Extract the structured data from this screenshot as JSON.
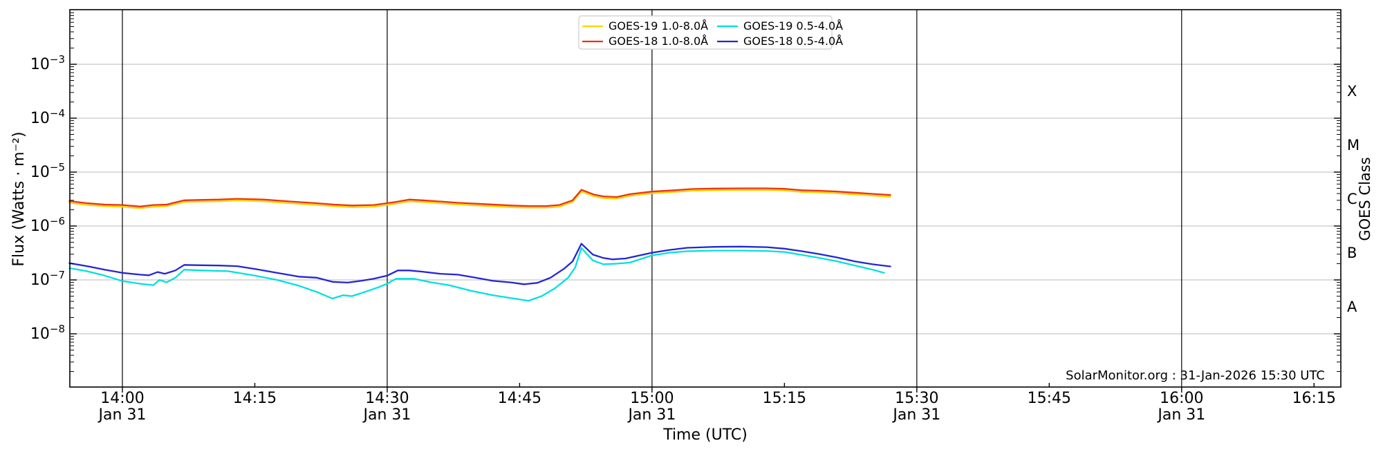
{
  "chart_data": {
    "type": "line",
    "title": "",
    "xlabel": "Time (UTC)",
    "ylabel": "Flux (Watts · m⁻²)",
    "ylabel_right": "GOES Class",
    "watermark": "SolarMonitor.org : 31-Jan-2026 15:30 UTC",
    "grid": true,
    "legend_position": "top-center",
    "x_unit": "minutes after 14:00 UTC, date Jan 31",
    "x_axis": {
      "window_start": "13:54",
      "window_end": "16:18",
      "ticks": [
        {
          "t_min": 0,
          "time": "14:00",
          "date": "Jan 31",
          "grid": true
        },
        {
          "t_min": 15,
          "time": "14:15",
          "date": "",
          "grid": false
        },
        {
          "t_min": 30,
          "time": "14:30",
          "date": "Jan 31",
          "grid": true
        },
        {
          "t_min": 45,
          "time": "14:45",
          "date": "",
          "grid": false
        },
        {
          "t_min": 60,
          "time": "15:00",
          "date": "Jan 31",
          "grid": true
        },
        {
          "t_min": 75,
          "time": "15:15",
          "date": "",
          "grid": false
        },
        {
          "t_min": 90,
          "time": "15:30",
          "date": "Jan 31",
          "grid": true
        },
        {
          "t_min": 105,
          "time": "15:45",
          "date": "",
          "grid": false
        },
        {
          "t_min": 120,
          "time": "16:00",
          "date": "Jan 31",
          "grid": true
        },
        {
          "t_min": 135,
          "time": "16:15",
          "date": "",
          "grid": false
        }
      ]
    },
    "y_axis": {
      "scale": "log",
      "min": 1e-09,
      "max": 0.01,
      "ticks": [
        {
          "exp": -3,
          "display": "10⁻³"
        },
        {
          "exp": -4,
          "display": "10⁻⁴"
        },
        {
          "exp": -5,
          "display": "10⁻⁵"
        },
        {
          "exp": -6,
          "display": "10⁻⁶"
        },
        {
          "exp": -7,
          "display": "10⁻⁷"
        },
        {
          "exp": -8,
          "display": "10⁻⁸"
        }
      ]
    },
    "goes_classes": [
      {
        "label": "X",
        "log10_center": -3.5
      },
      {
        "label": "M",
        "log10_center": -4.5
      },
      {
        "label": "C",
        "log10_center": -5.5
      },
      {
        "label": "B",
        "log10_center": -6.5
      },
      {
        "label": "A",
        "log10_center": -7.5
      }
    ],
    "colors": {
      "h_grid": "#c6c6c6",
      "v_grid": "#000000",
      "frame": "#000000",
      "legend_border": "#cccccc"
    },
    "series": [
      {
        "name": "GOES-19 1.0-8.0Å",
        "color": "#ffd200",
        "points": [
          [
            -6,
            2.7e-06
          ],
          [
            -4,
            2.46e-06
          ],
          [
            -2,
            2.33e-06
          ],
          [
            0,
            2.28e-06
          ],
          [
            2,
            2.14e-06
          ],
          [
            3.5,
            2.28e-06
          ],
          [
            5,
            2.33e-06
          ],
          [
            7,
            2.79e-06
          ],
          [
            9,
            2.84e-06
          ],
          [
            11,
            2.88e-06
          ],
          [
            13,
            2.98e-06
          ],
          [
            16,
            2.88e-06
          ],
          [
            19,
            2.65e-06
          ],
          [
            22,
            2.46e-06
          ],
          [
            24,
            2.33e-06
          ],
          [
            26,
            2.23e-06
          ],
          [
            28.5,
            2.28e-06
          ],
          [
            31,
            2.6e-06
          ],
          [
            32.5,
            2.88e-06
          ],
          [
            34,
            2.79e-06
          ],
          [
            36,
            2.65e-06
          ],
          [
            38,
            2.51e-06
          ],
          [
            41,
            2.37e-06
          ],
          [
            44,
            2.23e-06
          ],
          [
            46,
            2.19e-06
          ],
          [
            48,
            2.19e-06
          ],
          [
            49.5,
            2.28e-06
          ],
          [
            51,
            2.79e-06
          ],
          [
            52,
            4.37e-06
          ],
          [
            53.5,
            3.53e-06
          ],
          [
            54.5,
            3.3e-06
          ],
          [
            56,
            3.21e-06
          ],
          [
            57.5,
            3.63e-06
          ],
          [
            60,
            4.05e-06
          ],
          [
            62.5,
            4.28e-06
          ],
          [
            64.5,
            4.51e-06
          ],
          [
            67,
            4.6e-06
          ],
          [
            70,
            4.65e-06
          ],
          [
            73,
            4.65e-06
          ],
          [
            75,
            4.56e-06
          ],
          [
            77,
            4.28e-06
          ],
          [
            79,
            4.19e-06
          ],
          [
            81,
            4.05e-06
          ],
          [
            83,
            3.86e-06
          ],
          [
            85,
            3.67e-06
          ],
          [
            87,
            3.49e-06
          ]
        ]
      },
      {
        "name": "GOES-18 1.0-8.0Å",
        "color": "#ee3211",
        "points": [
          [
            -6,
            2.9e-06
          ],
          [
            -4,
            2.65e-06
          ],
          [
            -2,
            2.5e-06
          ],
          [
            0,
            2.45e-06
          ],
          [
            2,
            2.3e-06
          ],
          [
            3.5,
            2.45e-06
          ],
          [
            5,
            2.5e-06
          ],
          [
            7,
            3e-06
          ],
          [
            9,
            3.05e-06
          ],
          [
            11,
            3.1e-06
          ],
          [
            13,
            3.2e-06
          ],
          [
            16,
            3.1e-06
          ],
          [
            19,
            2.85e-06
          ],
          [
            22,
            2.65e-06
          ],
          [
            24,
            2.5e-06
          ],
          [
            26,
            2.4e-06
          ],
          [
            28.5,
            2.45e-06
          ],
          [
            31,
            2.8e-06
          ],
          [
            32.5,
            3.1e-06
          ],
          [
            34,
            3e-06
          ],
          [
            36,
            2.85e-06
          ],
          [
            38,
            2.7e-06
          ],
          [
            41,
            2.55e-06
          ],
          [
            44,
            2.4e-06
          ],
          [
            46,
            2.35e-06
          ],
          [
            48,
            2.35e-06
          ],
          [
            49.5,
            2.45e-06
          ],
          [
            51,
            3e-06
          ],
          [
            52,
            4.7e-06
          ],
          [
            53.5,
            3.8e-06
          ],
          [
            54.5,
            3.55e-06
          ],
          [
            56,
            3.45e-06
          ],
          [
            57.5,
            3.9e-06
          ],
          [
            60,
            4.35e-06
          ],
          [
            62.5,
            4.6e-06
          ],
          [
            64.5,
            4.85e-06
          ],
          [
            67,
            4.95e-06
          ],
          [
            70,
            5e-06
          ],
          [
            73,
            5e-06
          ],
          [
            75,
            4.9e-06
          ],
          [
            77,
            4.6e-06
          ],
          [
            79,
            4.5e-06
          ],
          [
            81,
            4.35e-06
          ],
          [
            83,
            4.15e-06
          ],
          [
            85,
            3.95e-06
          ],
          [
            87,
            3.75e-06
          ]
        ]
      },
      {
        "name": "GOES-19 0.5-4.0Å",
        "color": "#00e0e0",
        "points": [
          [
            -6,
            1.65e-07
          ],
          [
            -4,
            1.45e-07
          ],
          [
            -2,
            1.2e-07
          ],
          [
            0,
            9.5e-08
          ],
          [
            2,
            8.5e-08
          ],
          [
            3.5,
            8e-08
          ],
          [
            4.2,
            1e-07
          ],
          [
            5,
            9e-08
          ],
          [
            6,
            1.1e-07
          ],
          [
            7,
            1.55e-07
          ],
          [
            9,
            1.5e-07
          ],
          [
            12,
            1.45e-07
          ],
          [
            15,
            1.2e-07
          ],
          [
            17.5,
            1e-07
          ],
          [
            20,
            7.8e-08
          ],
          [
            22,
            6e-08
          ],
          [
            23.8,
            4.5e-08
          ],
          [
            25,
            5.2e-08
          ],
          [
            26,
            5e-08
          ],
          [
            27.5,
            6e-08
          ],
          [
            29,
            7.3e-08
          ],
          [
            30,
            8.5e-08
          ],
          [
            31,
            1.05e-07
          ],
          [
            33,
            1.05e-07
          ],
          [
            35,
            9e-08
          ],
          [
            37,
            8e-08
          ],
          [
            39.5,
            6.3e-08
          ],
          [
            42,
            5.2e-08
          ],
          [
            44,
            4.6e-08
          ],
          [
            46,
            4.1e-08
          ],
          [
            47.5,
            5e-08
          ],
          [
            49,
            7e-08
          ],
          [
            50.5,
            1.1e-07
          ],
          [
            51.3,
            1.7e-07
          ],
          [
            52,
            3.9e-07
          ],
          [
            53.3,
            2.3e-07
          ],
          [
            54.5,
            1.95e-07
          ],
          [
            56,
            2e-07
          ],
          [
            57.5,
            2.1e-07
          ],
          [
            60,
            2.85e-07
          ],
          [
            62,
            3.2e-07
          ],
          [
            64,
            3.4e-07
          ],
          [
            67,
            3.5e-07
          ],
          [
            70,
            3.5e-07
          ],
          [
            73,
            3.45e-07
          ],
          [
            75,
            3.3e-07
          ],
          [
            77,
            2.9e-07
          ],
          [
            79,
            2.55e-07
          ],
          [
            81,
            2.2e-07
          ],
          [
            83,
            1.85e-07
          ],
          [
            85,
            1.55e-07
          ],
          [
            86.3,
            1.35e-07
          ]
        ]
      },
      {
        "name": "GOES-18 0.5-4.0Å",
        "color": "#2424d9",
        "points": [
          [
            -6,
            2.05e-07
          ],
          [
            -4,
            1.8e-07
          ],
          [
            -2,
            1.55e-07
          ],
          [
            0,
            1.35e-07
          ],
          [
            2,
            1.25e-07
          ],
          [
            3,
            1.22e-07
          ],
          [
            4,
            1.4e-07
          ],
          [
            4.8,
            1.3e-07
          ],
          [
            6,
            1.5e-07
          ],
          [
            7,
            1.9e-07
          ],
          [
            9,
            1.87e-07
          ],
          [
            11,
            1.85e-07
          ],
          [
            13,
            1.8e-07
          ],
          [
            15,
            1.6e-07
          ],
          [
            17.5,
            1.35e-07
          ],
          [
            20,
            1.15e-07
          ],
          [
            22,
            1.1e-07
          ],
          [
            23.8,
            9.2e-08
          ],
          [
            25.5,
            8.9e-08
          ],
          [
            27,
            9.6e-08
          ],
          [
            28.5,
            1.05e-07
          ],
          [
            30,
            1.2e-07
          ],
          [
            31.2,
            1.5e-07
          ],
          [
            32.5,
            1.5e-07
          ],
          [
            34,
            1.42e-07
          ],
          [
            36,
            1.3e-07
          ],
          [
            38,
            1.25e-07
          ],
          [
            40,
            1.1e-07
          ],
          [
            42,
            9.6e-08
          ],
          [
            44,
            9e-08
          ],
          [
            45.5,
            8.3e-08
          ],
          [
            47,
            8.8e-08
          ],
          [
            48.5,
            1.1e-07
          ],
          [
            50,
            1.6e-07
          ],
          [
            51,
            2.2e-07
          ],
          [
            52,
            4.7e-07
          ],
          [
            53.3,
            2.95e-07
          ],
          [
            54.5,
            2.55e-07
          ],
          [
            55.5,
            2.4e-07
          ],
          [
            57,
            2.5e-07
          ],
          [
            60,
            3.2e-07
          ],
          [
            62,
            3.6e-07
          ],
          [
            64,
            3.95e-07
          ],
          [
            67,
            4.1e-07
          ],
          [
            70,
            4.15e-07
          ],
          [
            73,
            4.05e-07
          ],
          [
            75,
            3.8e-07
          ],
          [
            77,
            3.4e-07
          ],
          [
            79,
            3e-07
          ],
          [
            81,
            2.6e-07
          ],
          [
            83,
            2.2e-07
          ],
          [
            85,
            1.95e-07
          ],
          [
            87,
            1.78e-07
          ]
        ]
      }
    ]
  }
}
